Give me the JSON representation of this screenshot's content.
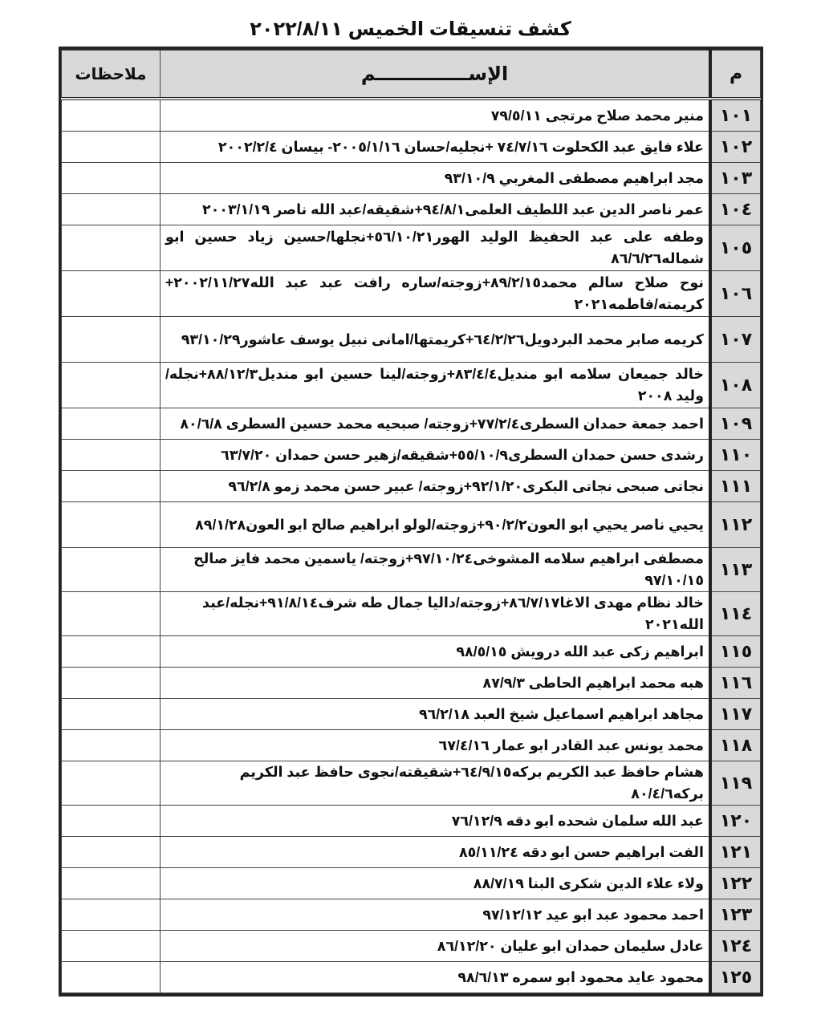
{
  "title": "كشف تنسيقات الخميس ٢٠٢٢/٨/١١",
  "headers": {
    "number": "م",
    "name": "الإســــــــــــــم",
    "notes": "ملاحظات"
  },
  "rows": [
    {
      "no": "١٠١",
      "name": "منير محمد صلاح مرتجى ٧٩/٥/١١",
      "notes": ""
    },
    {
      "no": "١٠٢",
      "name": "علاء فايق عبد الكحلوت ٧٤/٧/١٦ +نجليه/حسان ٢٠٠٥/١/١٦- بيسان ٢٠٠٢/٢/٤",
      "notes": ""
    },
    {
      "no": "١٠٣",
      "name": "مجد ابراهيم مصطفى المغربي ٩٣/١٠/٩",
      "notes": ""
    },
    {
      "no": "١٠٤",
      "name": "عمر ناصر الدين عبد اللطيف العلمى٩٤/٨/١+شقيقه/عبد الله ناصر ٢٠٠٣/١/١٩",
      "notes": ""
    },
    {
      "no": "١٠٥",
      "name": "وطفه على عبد الحفيظ الوليد الهور٥٦/١٠/٢١+نجلها/حسين زياد حسين ابو شماله٨٦/٦/٢٦",
      "notes": ""
    },
    {
      "no": "١٠٦",
      "name": "نوح صلاح سالم محمد٨٩/٢/١٥+زوجته/ساره رافت عبد عبد الله٢٠٠٢/١١/٢٧+ كريمته/فاطمه٢٠٢١",
      "notes": ""
    },
    {
      "no": "١٠٧",
      "name": "كريمه صابر محمد البردويل٦٤/٢/٢٦+كريمتها/امانى نبيل يوسف عاشور٩٣/١٠/٢٩",
      "notes": ""
    },
    {
      "no": "١٠٨",
      "name": "خالد جميعان سلامه ابو منديل٨٣/٤/٤+زوجته/لينا حسين ابو منديل٨٨/١٢/٣+نجله/وليد ٢٠٠٨",
      "notes": ""
    },
    {
      "no": "١٠٩",
      "name": "احمد جمعة حمدان السطرى٧٧/٢/٤+زوجته/ صبحيه محمد حسين السطرى ٨٠/٦/٨",
      "notes": ""
    },
    {
      "no": "١١٠",
      "name": "رشدى حسن حمدان السطرى٥٥/١٠/٩+شقيقه/زهير حسن حمدان ٦٣/٧/٢٠",
      "notes": ""
    },
    {
      "no": "١١١",
      "name": "نجاتى صبحى نجاتى البكرى٩٢/١/٢٠+زوجته/ عبير حسن محمد زمو ٩٦/٢/٨",
      "notes": ""
    },
    {
      "no": "١١٢",
      "name": "يحيي ناصر يحيي ابو العون٩٠/٢/٢+زوجته/لولو ابراهيم صالح ابو العون٨٩/١/٢٨",
      "notes": ""
    },
    {
      "no": "١١٣",
      "name": "مصطفى ابراهيم سلامه المشوخى٩٧/١٠/٢٤+زوجته/ ياسمين محمد فايز صالح ٩٧/١٠/١٥",
      "notes": ""
    },
    {
      "no": "١١٤",
      "name": "خالد نظام مهدى الاغا٨٦/٧/١٧+زوجته/داليا جمال طه شرف٩١/٨/١٤+نجله/عبد الله٢٠٢١",
      "notes": ""
    },
    {
      "no": "١١٥",
      "name": "ابراهيم زكى عبد الله درويش ٩٨/٥/١٥",
      "notes": ""
    },
    {
      "no": "١١٦",
      "name": "هبه محمد ابراهيم الحاطى ٨٧/٩/٣",
      "notes": ""
    },
    {
      "no": "١١٧",
      "name": "مجاهد ابراهيم اسماعيل شيخ العبد ٩٦/٢/١٨",
      "notes": ""
    },
    {
      "no": "١١٨",
      "name": "محمد يونس عبد القادر ابو عمار ٦٧/٤/١٦",
      "notes": ""
    },
    {
      "no": "١١٩",
      "name": "هشام حافظ عبد الكريم بركه٦٤/٩/١٥+شقيقته/نجوى حافظ عبد الكريم بركه٨٠/٤/٦",
      "notes": ""
    },
    {
      "no": "١٢٠",
      "name": "عبد الله سلمان شحده ابو دقه ٧٦/١٢/٩",
      "notes": ""
    },
    {
      "no": "١٢١",
      "name": "الفت ابراهيم حسن ابو دقه ٨٥/١١/٢٤",
      "notes": ""
    },
    {
      "no": "١٢٢",
      "name": "ولاء علاء الدين شكرى البنا ٨٨/٧/١٩",
      "notes": ""
    },
    {
      "no": "١٢٣",
      "name": "احمد محمود عبد ابو عيد ٩٧/١٢/١٢",
      "notes": ""
    },
    {
      "no": "١٢٤",
      "name": "عادل سليمان حمدان ابو عليان ٨٦/١٢/٢٠",
      "notes": ""
    },
    {
      "no": "١٢٥",
      "name": "محمود عايد محمود ابو سمره ٩٨/٦/١٣",
      "notes": ""
    }
  ]
}
